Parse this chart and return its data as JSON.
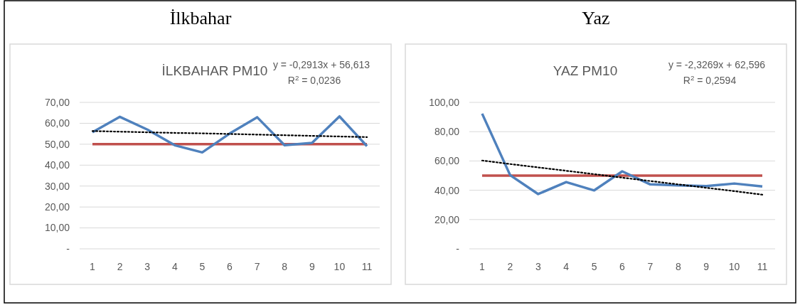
{
  "chart_data": [
    {
      "type": "line",
      "title": "İlkbahar",
      "subtitle": "İLKBAHAR PM10",
      "annotations": [
        "y = -0,2913x + 56,613",
        "R$^{2}$ = 0,0236"
      ],
      "categories": [
        "1",
        "2",
        "3",
        "4",
        "5",
        "6",
        "7",
        "8",
        "9",
        "10",
        "11"
      ],
      "series": [
        {
          "color": "#4f81bd",
          "values": [
            55.7,
            63.1,
            57.0,
            49.5,
            46.1,
            55.1,
            62.9,
            49.5,
            50.6,
            63.3,
            49.1
          ]
        },
        {
          "color": "#000000",
          "line_style": "dotted",
          "values": [
            56.3,
            56.0,
            55.7,
            55.4,
            55.2,
            54.9,
            54.6,
            54.3,
            54.0,
            53.7,
            53.4
          ]
        }
      ],
      "ref_lines": [
        {
          "axis": "y",
          "value": 50,
          "color": "#c0504d"
        }
      ],
      "ylim": [
        0,
        70
      ],
      "yticks": [
        {
          "value": 0,
          "label": "-"
        },
        {
          "value": 10,
          "label": "10,00"
        },
        {
          "value": 20,
          "label": "20,00"
        },
        {
          "value": 30,
          "label": "30,00"
        },
        {
          "value": 40,
          "label": "40,00"
        },
        {
          "value": 50,
          "label": "50,00"
        },
        {
          "value": 60,
          "label": "60,00"
        },
        {
          "value": 70,
          "label": "70,00"
        }
      ],
      "grid": "y"
    },
    {
      "type": "line",
      "title": "Yaz",
      "subtitle": "YAZ PM10",
      "annotations": [
        "y = -2,3269x + 62,596",
        "R$^{2}$ = 0,2594"
      ],
      "categories": [
        "1",
        "2",
        "3",
        "4",
        "5",
        "6",
        "7",
        "8",
        "9",
        "10",
        "11"
      ],
      "series": [
        {
          "color": "#4f81bd",
          "values": [
            92.3,
            50.3,
            37.4,
            45.6,
            39.9,
            52.9,
            44.0,
            43.3,
            42.8,
            44.6,
            42.6
          ]
        },
        {
          "color": "#000000",
          "line_style": "dotted",
          "values": [
            60.3,
            57.9,
            55.6,
            53.3,
            51.0,
            48.6,
            46.3,
            44.0,
            41.7,
            39.4,
            37.0
          ]
        }
      ],
      "ref_lines": [
        {
          "axis": "y",
          "value": 50,
          "color": "#c0504d"
        }
      ],
      "ylim": [
        0,
        100
      ],
      "yticks": [
        {
          "value": 0,
          "label": "-"
        },
        {
          "value": 20,
          "label": "20,00"
        },
        {
          "value": 40,
          "label": "40,00"
        },
        {
          "value": 60,
          "label": "60,00"
        },
        {
          "value": 80,
          "label": "80,00"
        },
        {
          "value": 100,
          "label": "100,00"
        }
      ],
      "grid": "y"
    }
  ]
}
